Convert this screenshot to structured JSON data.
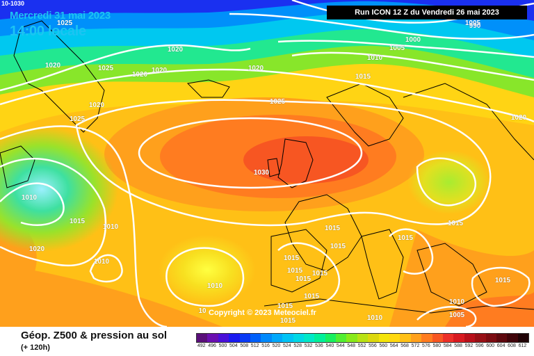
{
  "header": {
    "date": "Mercredi 31 mai 2023",
    "local_time": "14:00 locale",
    "corner_label": "10-1030",
    "run": "Run ICON 12 Z du Vendredi 26 mai 2023",
    "copyright": "Copyright © 2023 Meteociel.fr"
  },
  "footer": {
    "title": "Géop. Z500 & pression au sol",
    "lead": "(+ 120h)"
  },
  "legend": {
    "ticks": [
      "492",
      "496",
      "500",
      "504",
      "508",
      "512",
      "516",
      "520",
      "524",
      "528",
      "532",
      "536",
      "540",
      "544",
      "548",
      "552",
      "556",
      "560",
      "564",
      "568",
      "572",
      "576",
      "580",
      "584",
      "588",
      "592",
      "596",
      "600",
      "604",
      "608",
      "612"
    ],
    "colors": [
      "#5a0f7a",
      "#6a0fb0",
      "#4a10d8",
      "#1b1bf0",
      "#0a3af5",
      "#0060fa",
      "#0089fb",
      "#00a8fb",
      "#00c3f5",
      "#00d8e5",
      "#00e8c8",
      "#00f09a",
      "#18f060",
      "#52ee32",
      "#88ea1a",
      "#b8e214",
      "#dcd80e",
      "#f4e40a",
      "#ffd810",
      "#ffc016",
      "#ffa01c",
      "#ff7c20",
      "#f75622",
      "#ec3028",
      "#d81a20",
      "#b8101a",
      "#981016",
      "#7c0c12",
      "#5e080e",
      "#40040a",
      "#200206"
    ]
  },
  "isobar_labels": [
    {
      "text": "1025",
      "lon": 93,
      "lat": 36
    },
    {
      "text": "1020",
      "lon": 252,
      "lat": 74
    },
    {
      "text": "1020",
      "lon": 76,
      "lat": 97
    },
    {
      "text": "1025",
      "lon": 152,
      "lat": 101
    },
    {
      "text": "1020",
      "lon": 201,
      "lat": 110
    },
    {
      "text": "1020",
      "lon": 229,
      "lat": 104
    },
    {
      "text": "1020",
      "lon": 368,
      "lat": 101
    },
    {
      "text": "1025",
      "lon": 399,
      "lat": 149
    },
    {
      "text": "1020",
      "lon": 139,
      "lat": 154
    },
    {
      "text": "1025",
      "lon": 111,
      "lat": 174
    },
    {
      "text": "1030",
      "lon": 376,
      "lat": 251
    },
    {
      "text": "1010",
      "lon": 42,
      "lat": 287
    },
    {
      "text": "1015",
      "lon": 111,
      "lat": 321
    },
    {
      "text": "1010",
      "lon": 159,
      "lat": 329
    },
    {
      "text": "1020",
      "lon": 53,
      "lat": 361
    },
    {
      "text": "1010",
      "lon": 146,
      "lat": 379
    },
    {
      "text": "1010",
      "lon": 309,
      "lat": 414
    },
    {
      "text": "1015",
      "lon": 478,
      "lat": 331
    },
    {
      "text": "1015",
      "lon": 486,
      "lat": 357
    },
    {
      "text": "1015",
      "lon": 419,
      "lat": 374
    },
    {
      "text": "1015",
      "lon": 424,
      "lat": 392
    },
    {
      "text": "1015",
      "lon": 436,
      "lat": 404
    },
    {
      "text": "1015",
      "lon": 460,
      "lat": 396
    },
    {
      "text": "1015",
      "lon": 448,
      "lat": 429
    },
    {
      "text": "1015",
      "lon": 410,
      "lat": 443
    },
    {
      "text": "1015",
      "lon": 414,
      "lat": 464
    },
    {
      "text": "1010",
      "lon": 539,
      "lat": 460
    },
    {
      "text": "1015",
      "lon": 583,
      "lat": 345
    },
    {
      "text": "1015",
      "lon": 655,
      "lat": 324
    },
    {
      "text": "1015",
      "lon": 723,
      "lat": 406
    },
    {
      "text": "1010",
      "lon": 657,
      "lat": 437
    },
    {
      "text": "1005",
      "lon": 657,
      "lat": 456
    },
    {
      "text": "1005",
      "lon": 680,
      "lat": 36
    },
    {
      "text": "990",
      "lon": 683,
      "lat": 40
    },
    {
      "text": "1000",
      "lon": 594,
      "lat": 60
    },
    {
      "text": "1005",
      "lon": 571,
      "lat": 72
    },
    {
      "text": "1010",
      "lon": 539,
      "lat": 86
    },
    {
      "text": "1015",
      "lon": 522,
      "lat": 113
    },
    {
      "text": "1020",
      "lon": 746,
      "lat": 172
    },
    {
      "text": "10",
      "lon": 291,
      "lat": 450
    }
  ]
}
